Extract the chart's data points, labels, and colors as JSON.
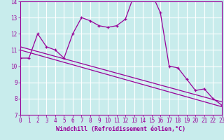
{
  "xlabel": "Windchill (Refroidissement éolien,°C)",
  "bg_color": "#c8ecec",
  "grid_color": "#ffffff",
  "line_color": "#990099",
  "xmin": 0,
  "xmax": 23,
  "ymin": 7,
  "ymax": 14,
  "yticks": [
    7,
    8,
    9,
    10,
    11,
    12,
    13,
    14
  ],
  "xticks": [
    0,
    1,
    2,
    3,
    4,
    5,
    6,
    7,
    8,
    9,
    10,
    11,
    12,
    13,
    14,
    15,
    16,
    17,
    18,
    19,
    20,
    21,
    22,
    23
  ],
  "line1_x": [
    0,
    1,
    2,
    3,
    4,
    5,
    6,
    7,
    8,
    9,
    10,
    11,
    12,
    13,
    14,
    15,
    16,
    17,
    18,
    19,
    20,
    21,
    22,
    23
  ],
  "line1_y": [
    10.5,
    10.5,
    12.0,
    11.2,
    11.0,
    10.5,
    12.0,
    13.0,
    12.8,
    12.5,
    12.4,
    12.5,
    12.9,
    14.4,
    14.2,
    14.5,
    13.3,
    10.0,
    9.9,
    9.2,
    8.5,
    8.6,
    8.0,
    7.6
  ],
  "line2_x": [
    0,
    23
  ],
  "line2_y": [
    11.2,
    7.8
  ],
  "line3_x": [
    0,
    23
  ],
  "line3_y": [
    11.0,
    7.5
  ],
  "tick_color": "#990099",
  "axis_color": "#990099",
  "tick_fontsize": 5.5,
  "xlabel_fontsize": 6.0
}
